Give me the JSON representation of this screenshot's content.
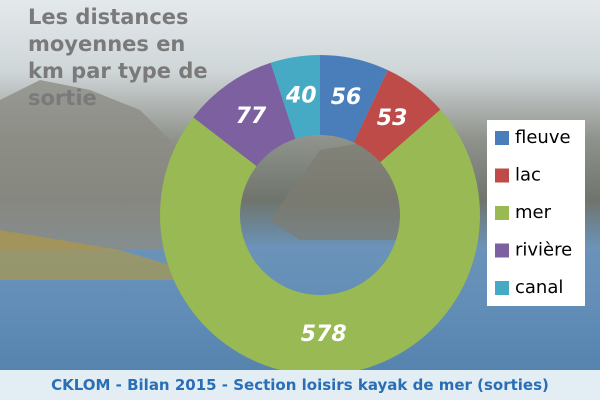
{
  "chart_data": {
    "type": "donut",
    "title": "Les distances moyennes en km par type de sortie",
    "categories": [
      "fleuve",
      "lac",
      "mer",
      "rivière",
      "canal"
    ],
    "values": [
      56,
      53,
      578,
      77,
      40
    ],
    "colors": [
      "#4a7ebb",
      "#be4b48",
      "#98b954",
      "#7d60a0",
      "#46aac5"
    ],
    "legend": "right"
  },
  "footer": "CKLOM - Bilan 2015 - Section loisirs kayak de mer (sorties)"
}
